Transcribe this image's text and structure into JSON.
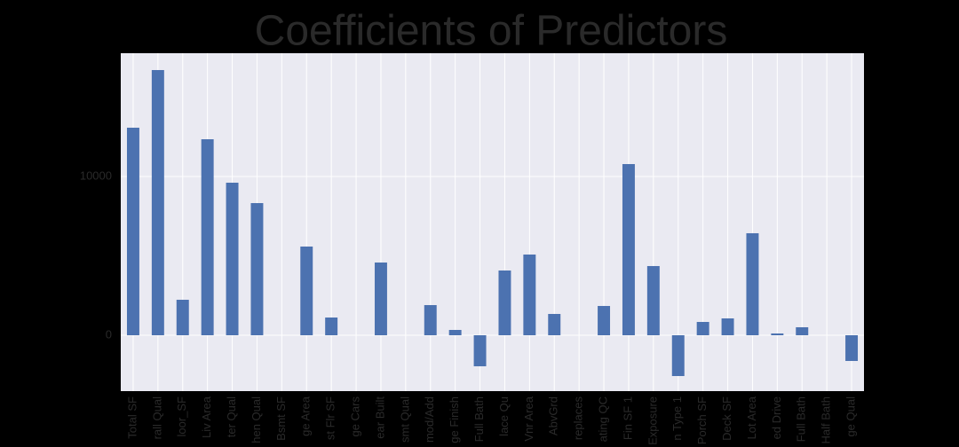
{
  "chart_data": {
    "type": "bar",
    "title": "Coefficients of Predictors",
    "categories": [
      "Total SF",
      "rall Qual",
      "loor_SF",
      "Liv Area",
      "ter Qual",
      "hen Qual",
      "Bsmt SF",
      "ge Area",
      "st Flr SF",
      "ge Cars",
      "ear Built",
      "smt Qual",
      "mod/Add",
      "ge Finish",
      "Full Bath",
      "lace Qu",
      "Vnr Area",
      "AbvGrd",
      "replaces",
      "ating QC",
      "Fin SF 1",
      "Exposure",
      "n Type 1",
      "Porch SF",
      "Deck SF",
      "Lot Area",
      "ed Drive",
      "Full Bath",
      "Half Bath",
      "ge Qual"
    ],
    "values": [
      13073,
      16704,
      2235,
      12346,
      9609,
      8324,
      0,
      5587,
      1117,
      0,
      4581,
      0,
      1899,
      335,
      -1955,
      4078,
      5084,
      1341,
      0,
      1844,
      10782,
      4358,
      -2570,
      838,
      1061,
      6425,
      112,
      503,
      0,
      -1620
    ],
    "color": "#4c72b0",
    "ylim": [
      -3520,
      17765
    ],
    "yticks": [
      0,
      10000
    ],
    "grid": true
  }
}
